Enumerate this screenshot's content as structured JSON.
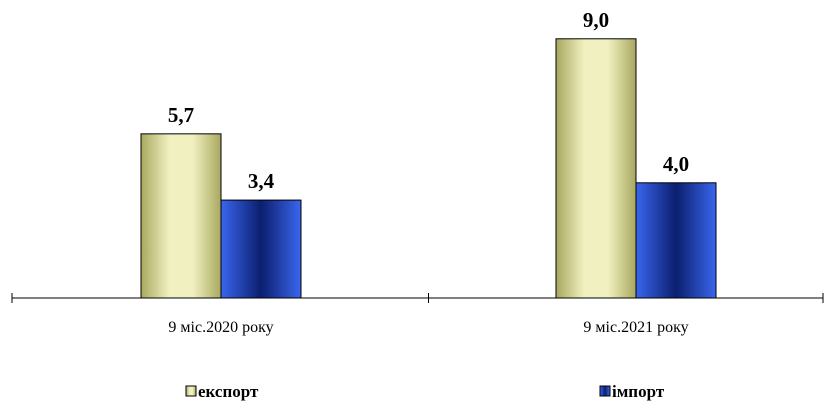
{
  "chart_data": {
    "type": "bar",
    "title": "",
    "xlabel": "",
    "ylabel": "",
    "categories": [
      "9 міс.2020 року",
      "9 міс.2021 року"
    ],
    "series": [
      {
        "name": "експорт",
        "values": [
          5.7,
          9.0
        ],
        "labels": [
          "5,7",
          "9,0"
        ],
        "color": "#e6e6a8"
      },
      {
        "name": "імпорт",
        "values": [
          3.4,
          4.0
        ],
        "labels": [
          "3,4",
          "4,0"
        ],
        "color": "#3355cc"
      }
    ],
    "ylim": [
      0,
      10
    ],
    "grid": false,
    "legend_position": "bottom",
    "data_labels": true
  }
}
